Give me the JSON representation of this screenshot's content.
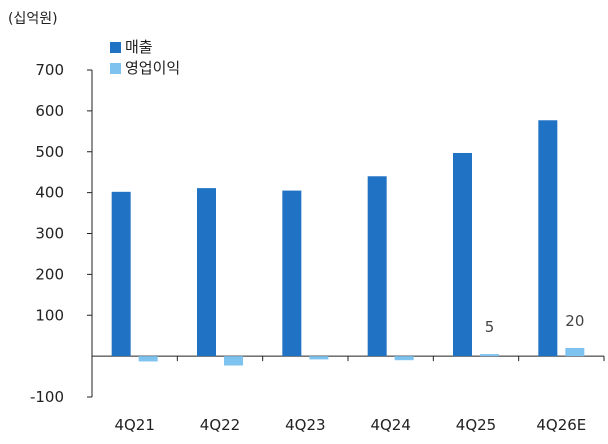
{
  "chart_data": {
    "type": "bar",
    "unit_label": "(십억원)",
    "categories": [
      "4Q21",
      "4Q22",
      "4Q23",
      "4Q24",
      "4Q25",
      "4Q26E"
    ],
    "series": [
      {
        "name": "매출",
        "color": "#1f72c4",
        "values": [
          402,
          411,
          405,
          440,
          497,
          577
        ]
      },
      {
        "name": "영업이익",
        "color": "#7ec3ef",
        "values": [
          -13,
          -23,
          -8,
          -10,
          5,
          20
        ]
      }
    ],
    "data_labels": [
      {
        "category": "4Q25",
        "series": "영업이익",
        "text": "5"
      },
      {
        "category": "4Q26E",
        "series": "영업이익",
        "text": "20"
      }
    ],
    "yticks": [
      -100,
      100,
      200,
      300,
      400,
      500,
      600,
      700
    ],
    "ylim": [
      -100,
      700
    ],
    "legend_position": "top-left",
    "grid": false
  }
}
